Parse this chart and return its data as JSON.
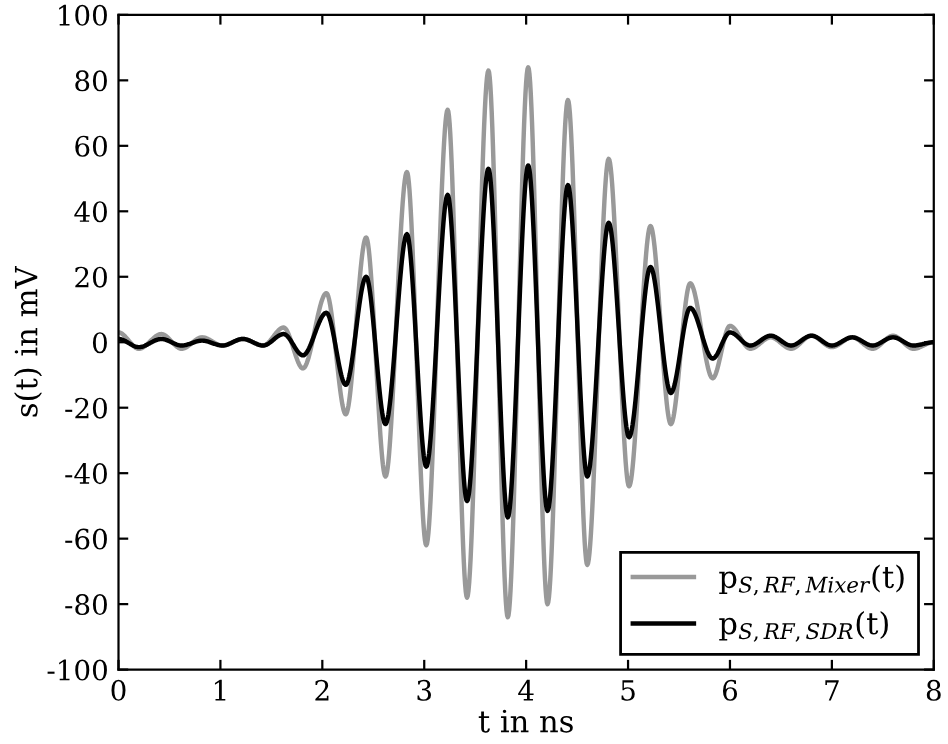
{
  "chart_data": {
    "type": "line",
    "xlabel": "t in ns",
    "ylabel": "s(t) in mV",
    "xlim": [
      0,
      8
    ],
    "ylim": [
      -100,
      100
    ],
    "xticks": [
      0,
      1,
      2,
      3,
      4,
      5,
      6,
      7,
      8
    ],
    "yticks": [
      -100,
      -80,
      -60,
      -40,
      -20,
      0,
      20,
      40,
      60,
      80,
      100
    ],
    "grid": false,
    "legend": "bottom right",
    "line_style": "solid",
    "marker": "none",
    "series": [
      {
        "name": "p$_{S,RF,Mixer}$(t)",
        "color": "#999999",
        "x": [
          0,
          0.2,
          0.42,
          0.62,
          0.82,
          1.02,
          1.22,
          1.42,
          1.62,
          1.81,
          2.04,
          2.23,
          2.43,
          2.62,
          2.83,
          3.02,
          3.23,
          3.42,
          3.63,
          3.82,
          4.02,
          4.21,
          4.41,
          4.6,
          4.81,
          5.01,
          5.22,
          5.42,
          5.61,
          5.83,
          6.0,
          6.2,
          6.4,
          6.6,
          6.8,
          7.0,
          7.2,
          7.4,
          7.6,
          7.8,
          8.0
        ],
        "values": [
          3,
          -2,
          2.5,
          -2,
          1.5,
          -1,
          1,
          -1,
          4.5,
          -8,
          15,
          -22,
          32,
          -41,
          52,
          -62,
          71,
          -78,
          83,
          -84,
          84,
          -80,
          74,
          -68,
          56,
          -44,
          35.5,
          -25,
          18,
          -11,
          5,
          -2,
          1.5,
          -2,
          2,
          -1.5,
          1.5,
          -2,
          2,
          -2,
          0
        ]
      },
      {
        "name": "p$_{S,RF,SDR}$(t)",
        "color": "#000000",
        "x": [
          0,
          0.2,
          0.42,
          0.62,
          0.82,
          1.02,
          1.22,
          1.42,
          1.62,
          1.81,
          2.04,
          2.23,
          2.43,
          2.62,
          2.83,
          3.02,
          3.23,
          3.42,
          3.63,
          3.82,
          4.02,
          4.21,
          4.41,
          4.6,
          4.81,
          5.01,
          5.22,
          5.42,
          5.61,
          5.83,
          6.0,
          6.2,
          6.4,
          6.6,
          6.8,
          7.0,
          7.2,
          7.4,
          7.6,
          7.8,
          8.0
        ],
        "values": [
          1,
          -1.5,
          1,
          -1,
          0.5,
          -1,
          1,
          -1,
          2.5,
          -4,
          9,
          -13,
          20,
          -25,
          33,
          -38,
          45,
          -48.5,
          53,
          -53.5,
          54,
          -51.5,
          48,
          -41,
          36.5,
          -29,
          23,
          -15.5,
          10.5,
          -5,
          3,
          -1,
          2,
          -1,
          2,
          -1,
          1.5,
          -1,
          1.5,
          -1,
          0
        ]
      }
    ]
  }
}
